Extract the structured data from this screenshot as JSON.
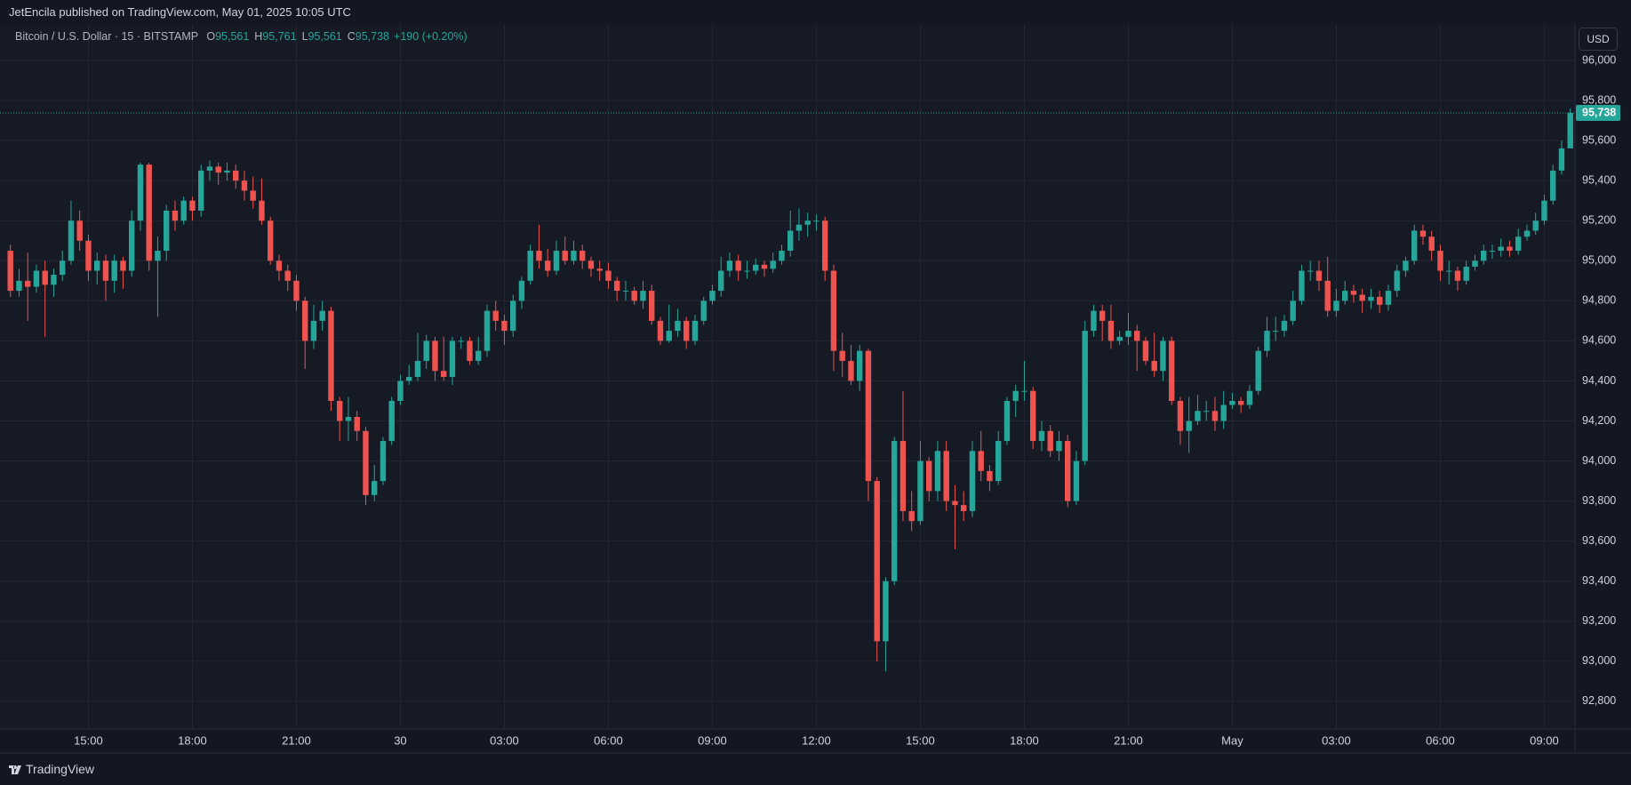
{
  "header": {
    "publisher": "JetEncila published on TradingView.com, May 01, 2025 10:05 UTC"
  },
  "footer": {
    "brand": "TradingView"
  },
  "currency_button": "USD",
  "chart_data": {
    "type": "candlestick",
    "title": "Bitcoin / U.S. Dollar · 15 · BITSTAMP",
    "ohlc_legend": [
      {
        "key": "O",
        "value": 95561,
        "label": "95,561"
      },
      {
        "key": "H",
        "value": 95761,
        "label": "95,761"
      },
      {
        "key": "L",
        "value": 95561,
        "label": "95,561"
      },
      {
        "key": "C",
        "value": 95738,
        "label": "95,738"
      }
    ],
    "change": "+190 (+0.20%)",
    "last_price": {
      "value": 95738,
      "label": "95,738"
    },
    "up_color": "#26a69a",
    "down_color": "#ef5350",
    "grid": true,
    "ylim": [
      92662,
      96182
    ],
    "yticks": [
      {
        "value": 92800,
        "label": "92,800"
      },
      {
        "value": 93000,
        "label": "93,000"
      },
      {
        "value": 93200,
        "label": "93,200"
      },
      {
        "value": 93400,
        "label": "93,400"
      },
      {
        "value": 93600,
        "label": "93,600"
      },
      {
        "value": 93800,
        "label": "93,800"
      },
      {
        "value": 94000,
        "label": "94,000"
      },
      {
        "value": 94200,
        "label": "94,200"
      },
      {
        "value": 94400,
        "label": "94,400"
      },
      {
        "value": 94600,
        "label": "94,600"
      },
      {
        "value": 94800,
        "label": "94,800"
      },
      {
        "value": 95000,
        "label": "95,000"
      },
      {
        "value": 95200,
        "label": "95,200"
      },
      {
        "value": 95400,
        "label": "95,400"
      },
      {
        "value": 95600,
        "label": "95,600"
      },
      {
        "value": 95800,
        "label": "95,800"
      },
      {
        "value": 96000,
        "label": "96,000"
      }
    ],
    "xticks": [
      {
        "value": 9,
        "label": "15:00"
      },
      {
        "value": 21,
        "label": "18:00"
      },
      {
        "value": 33,
        "label": "21:00"
      },
      {
        "value": 45,
        "label": "30"
      },
      {
        "value": 57,
        "label": "03:00"
      },
      {
        "value": 69,
        "label": "06:00"
      },
      {
        "value": 81,
        "label": "09:00"
      },
      {
        "value": 93,
        "label": "12:00"
      },
      {
        "value": 105,
        "label": "15:00"
      },
      {
        "value": 117,
        "label": "18:00"
      },
      {
        "value": 129,
        "label": "21:00"
      },
      {
        "value": 141,
        "label": "May"
      },
      {
        "value": 153,
        "label": "03:00"
      },
      {
        "value": 165,
        "label": "06:00"
      },
      {
        "value": 177,
        "label": "09:00"
      }
    ],
    "open": [
      95050,
      94850,
      94900,
      94870,
      94950,
      94880,
      94930,
      95000,
      95200,
      95100,
      94950,
      95000,
      94900,
      95000,
      94950,
      95200,
      95480,
      95000,
      95050,
      95250,
      95200,
      95300,
      95250,
      95450,
      95470,
      95440,
      95450,
      95400,
      95350,
      95300,
      95200,
      95000,
      94950,
      94900,
      94800,
      94600,
      94700,
      94750,
      94300,
      94200,
      94220,
      94150,
      93830,
      93900,
      94100,
      94300,
      94400,
      94420,
      94500,
      94600,
      94450,
      94420,
      94600,
      94600,
      94500,
      94550,
      94750,
      94700,
      94650,
      94800,
      94900,
      95050,
      95000,
      94950,
      95050,
      95000,
      95050,
      95000,
      94960,
      94950,
      94900,
      94850,
      94850,
      94800,
      94850,
      94700,
      94600,
      94650,
      94700,
      94600,
      94700,
      94800,
      94850,
      94950,
      95000,
      94950,
      94950,
      94980,
      94960,
      95000,
      95050,
      95150,
      95180,
      95200,
      95200,
      94950,
      94550,
      94500,
      94400,
      94550,
      93900,
      93100,
      93400,
      94100,
      93750,
      93700,
      94000,
      93850,
      94050,
      93800,
      93780,
      93750,
      94050,
      93950,
      93900,
      94100,
      94300,
      94350,
      94350,
      94100,
      94150,
      94050,
      94100,
      93800,
      94000,
      94650,
      94750,
      94700,
      94600,
      94620,
      94650,
      94600,
      94500,
      94450,
      94600,
      94300,
      94150,
      94200,
      94250,
      94250,
      94200,
      94280,
      94300,
      94280,
      94350,
      94550,
      94650,
      94650,
      94700,
      94800,
      94950,
      94950,
      94900,
      94750,
      94800,
      94850,
      94830,
      94800,
      94820,
      94780,
      94850,
      94950,
      95000,
      95150,
      95120,
      95050,
      94950,
      94950,
      94900,
      94970,
      95000,
      95050,
      95050,
      95070,
      95050,
      95120,
      95150,
      95200,
      95300,
      95450,
      95561
    ],
    "high": [
      95080,
      94960,
      95040,
      94980,
      95000,
      94960,
      95050,
      95300,
      95250,
      95130,
      95040,
      95030,
      95030,
      95020,
      95250,
      95490,
      95490,
      95120,
      95280,
      95300,
      95320,
      95320,
      95480,
      95500,
      95490,
      95490,
      95480,
      95450,
      95420,
      95410,
      95220,
      95030,
      94980,
      94930,
      94820,
      94780,
      94800,
      94770,
      94320,
      94320,
      94250,
      94170,
      93980,
      94120,
      94320,
      94430,
      94480,
      94640,
      94630,
      94620,
      94620,
      94620,
      94620,
      94620,
      94620,
      94780,
      94800,
      94730,
      94830,
      94920,
      95080,
      95180,
      95060,
      95100,
      95120,
      95100,
      95080,
      95020,
      95000,
      94990,
      94920,
      94900,
      94870,
      94900,
      94880,
      94720,
      94780,
      94760,
      94720,
      94730,
      94820,
      94880,
      95020,
      95040,
      95030,
      95000,
      95010,
      95000,
      95040,
      95080,
      95250,
      95260,
      95240,
      95230,
      95220,
      94980,
      94640,
      94580,
      94580,
      94560,
      93920,
      93420,
      94120,
      94350,
      93850,
      94100,
      94020,
      94100,
      94100,
      93880,
      93850,
      94100,
      94150,
      93980,
      94150,
      94320,
      94380,
      94500,
      94370,
      94200,
      94180,
      94150,
      94130,
      94050,
      94700,
      94780,
      94780,
      94780,
      94650,
      94740,
      94680,
      94620,
      94640,
      94620,
      94620,
      94320,
      94320,
      94330,
      94300,
      94320,
      94350,
      94340,
      94320,
      94380,
      94570,
      94720,
      94720,
      94730,
      94850,
      94980,
      95000,
      95000,
      95020,
      94860,
      94900,
      94880,
      94860,
      94860,
      94850,
      94880,
      94980,
      95020,
      95180,
      95180,
      95150,
      95080,
      95000,
      94970,
      95000,
      95030,
      95080,
      95080,
      95110,
      95100,
      95160,
      95180,
      95240,
      95330,
      95480,
      95600,
      95761
    ],
    "low": [
      94820,
      94820,
      94700,
      94840,
      94620,
      94820,
      94900,
      94980,
      95050,
      94900,
      94880,
      94800,
      94840,
      94860,
      94920,
      95150,
      94950,
      94720,
      95000,
      95150,
      95180,
      95200,
      95220,
      95400,
      95380,
      95400,
      95360,
      95300,
      95260,
      95180,
      94980,
      94900,
      94850,
      94750,
      94460,
      94560,
      94650,
      94250,
      94100,
      94100,
      94100,
      93780,
      93800,
      93880,
      94080,
      94280,
      94380,
      94400,
      94460,
      94400,
      94400,
      94380,
      94560,
      94480,
      94480,
      94520,
      94650,
      94580,
      94620,
      94760,
      94880,
      94960,
      94920,
      94930,
      94980,
      94980,
      94960,
      94920,
      94900,
      94860,
      94800,
      94800,
      94780,
      94760,
      94680,
      94580,
      94590,
      94620,
      94560,
      94580,
      94680,
      94780,
      94820,
      94920,
      94900,
      94910,
      94930,
      94920,
      94940,
      94980,
      95020,
      95100,
      95120,
      95150,
      94900,
      94450,
      94420,
      94380,
      94350,
      93800,
      93000,
      92950,
      93380,
      93700,
      93650,
      93680,
      93800,
      93800,
      93750,
      93560,
      93700,
      93720,
      93900,
      93850,
      93880,
      94080,
      94220,
      94300,
      94060,
      94050,
      94020,
      94000,
      93770,
      93780,
      93980,
      94620,
      94600,
      94560,
      94580,
      94580,
      94450,
      94480,
      94420,
      94400,
      94280,
      94080,
      94040,
      94180,
      94200,
      94150,
      94160,
      94260,
      94240,
      94260,
      94330,
      94520,
      94600,
      94620,
      94680,
      94780,
      94900,
      94850,
      94720,
      94720,
      94780,
      94790,
      94740,
      94760,
      94740,
      94750,
      94820,
      94920,
      94980,
      95080,
      95000,
      94900,
      94880,
      94850,
      94880,
      94950,
      94980,
      95010,
      95020,
      95020,
      95030,
      95100,
      95130,
      95180,
      95280,
      95430,
      95561
    ],
    "close": [
      94850,
      94900,
      94870,
      94950,
      94880,
      94930,
      95000,
      95200,
      95100,
      94950,
      95000,
      94900,
      95000,
      94950,
      95200,
      95480,
      95000,
      95050,
      95250,
      95200,
      95300,
      95250,
      95450,
      95470,
      95440,
      95450,
      95400,
      95350,
      95300,
      95200,
      95000,
      94950,
      94900,
      94800,
      94600,
      94700,
      94750,
      94300,
      94200,
      94220,
      94150,
      93830,
      93900,
      94100,
      94300,
      94400,
      94420,
      94500,
      94600,
      94450,
      94420,
      94600,
      94600,
      94500,
      94550,
      94750,
      94700,
      94650,
      94800,
      94900,
      95050,
      95000,
      94950,
      95050,
      95000,
      95050,
      95000,
      94960,
      94950,
      94900,
      94850,
      94850,
      94800,
      94850,
      94700,
      94600,
      94650,
      94700,
      94600,
      94700,
      94800,
      94850,
      94950,
      95000,
      94950,
      94950,
      94980,
      94960,
      95000,
      95050,
      95150,
      95180,
      95200,
      95200,
      94950,
      94550,
      94500,
      94400,
      94550,
      93900,
      93100,
      93400,
      94100,
      93750,
      93700,
      94000,
      93850,
      94050,
      93800,
      93780,
      93750,
      94050,
      93950,
      93900,
      94100,
      94300,
      94350,
      94350,
      94100,
      94150,
      94050,
      94100,
      93800,
      94000,
      94650,
      94750,
      94700,
      94600,
      94620,
      94650,
      94600,
      94500,
      94450,
      94600,
      94300,
      94150,
      94200,
      94250,
      94250,
      94200,
      94280,
      94300,
      94280,
      94350,
      94550,
      94650,
      94650,
      94700,
      94800,
      94950,
      94950,
      94900,
      94750,
      94800,
      94850,
      94830,
      94800,
      94820,
      94780,
      94850,
      94950,
      95000,
      95150,
      95120,
      95050,
      94950,
      94950,
      94900,
      94970,
      95000,
      95050,
      95050,
      95070,
      95050,
      95120,
      95150,
      95200,
      95300,
      95450,
      95561,
      95738
    ]
  }
}
